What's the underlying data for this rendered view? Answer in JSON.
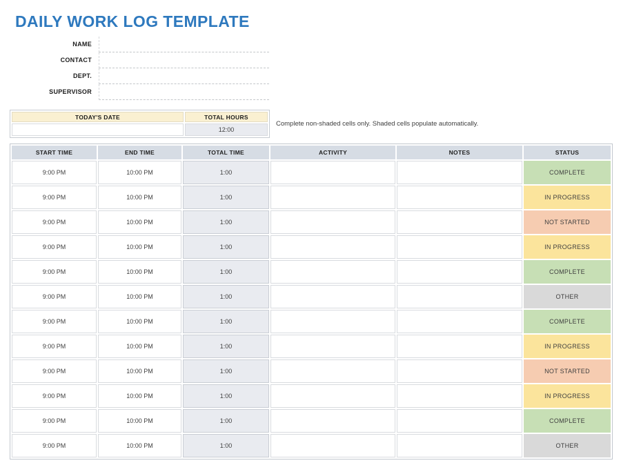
{
  "page": {
    "title": "DAILY WORK LOG TEMPLATE",
    "note": "Complete non-shaded cells only. Shaded cells populate automatically."
  },
  "info_fields": [
    {
      "label": "NAME",
      "value": ""
    },
    {
      "label": "CONTACT",
      "value": ""
    },
    {
      "label": "DEPT.",
      "value": ""
    },
    {
      "label": "SUPERVISOR",
      "value": ""
    }
  ],
  "summary": {
    "date_header": "TODAY'S DATE",
    "hours_header": "TOTAL HOURS",
    "date_value": "",
    "hours_value": "12:00"
  },
  "log_table": {
    "headers": [
      "START TIME",
      "END TIME",
      "TOTAL TIME",
      "ACTIVITY",
      "NOTES",
      "STATUS"
    ],
    "rows": [
      {
        "start": "9:00 PM",
        "end": "10:00 PM",
        "total": "1:00",
        "activity": "",
        "notes": "",
        "status": "COMPLETE"
      },
      {
        "start": "9:00 PM",
        "end": "10:00 PM",
        "total": "1:00",
        "activity": "",
        "notes": "",
        "status": "IN PROGRESS"
      },
      {
        "start": "9:00 PM",
        "end": "10:00 PM",
        "total": "1:00",
        "activity": "",
        "notes": "",
        "status": "NOT STARTED"
      },
      {
        "start": "9:00 PM",
        "end": "10:00 PM",
        "total": "1:00",
        "activity": "",
        "notes": "",
        "status": "IN PROGRESS"
      },
      {
        "start": "9:00 PM",
        "end": "10:00 PM",
        "total": "1:00",
        "activity": "",
        "notes": "",
        "status": "COMPLETE"
      },
      {
        "start": "9:00 PM",
        "end": "10:00 PM",
        "total": "1:00",
        "activity": "",
        "notes": "",
        "status": "OTHER"
      },
      {
        "start": "9:00 PM",
        "end": "10:00 PM",
        "total": "1:00",
        "activity": "",
        "notes": "",
        "status": "COMPLETE"
      },
      {
        "start": "9:00 PM",
        "end": "10:00 PM",
        "total": "1:00",
        "activity": "",
        "notes": "",
        "status": "IN PROGRESS"
      },
      {
        "start": "9:00 PM",
        "end": "10:00 PM",
        "total": "1:00",
        "activity": "",
        "notes": "",
        "status": "NOT STARTED"
      },
      {
        "start": "9:00 PM",
        "end": "10:00 PM",
        "total": "1:00",
        "activity": "",
        "notes": "",
        "status": "IN PROGRESS"
      },
      {
        "start": "9:00 PM",
        "end": "10:00 PM",
        "total": "1:00",
        "activity": "",
        "notes": "",
        "status": "COMPLETE"
      },
      {
        "start": "9:00 PM",
        "end": "10:00 PM",
        "total": "1:00",
        "activity": "",
        "notes": "",
        "status": "OTHER"
      }
    ]
  },
  "colors": {
    "title_blue": "#2E79BE",
    "header_fill": "#D6DCE4",
    "cream_fill": "#FAF0D1",
    "shaded_fill": "#E9EBF0",
    "status_complete": "#C7DFB5",
    "status_in_progress": "#FBE49C",
    "status_not_started": "#F6CCB1",
    "status_other": "#D9D9D9"
  }
}
